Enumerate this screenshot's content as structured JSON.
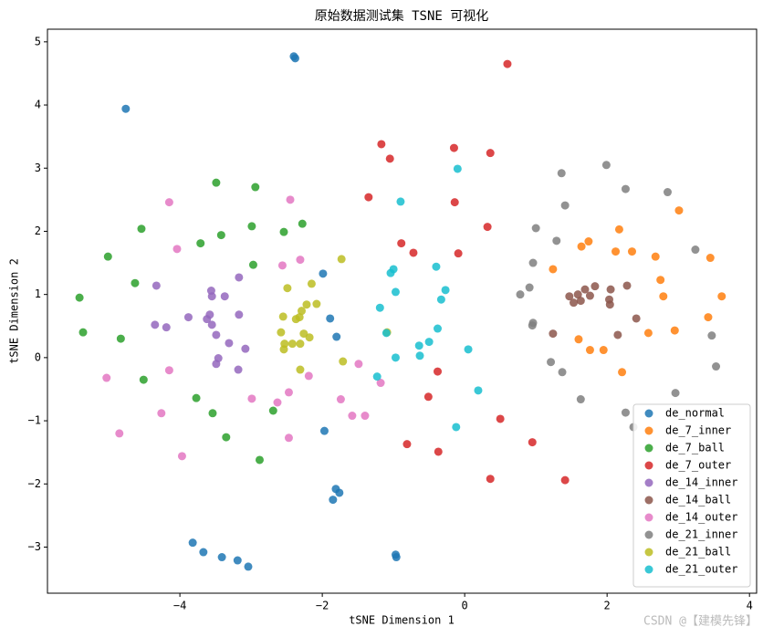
{
  "chart_data": {
    "type": "scatter",
    "title": "原始数据测试集 TSNE 可视化",
    "x_label": "tSNE Dimension 1",
    "y_label": "tSNE Dimension 2",
    "xlim": [
      -5.86,
      4.1
    ],
    "ylim": [
      -3.73,
      5.2
    ],
    "xticks": [
      {
        "value": -4,
        "label": "−4"
      },
      {
        "value": -2,
        "label": "−2"
      },
      0,
      2,
      4
    ],
    "yticks": [
      {
        "value": -3,
        "label": "−3"
      },
      {
        "value": -2,
        "label": "−2"
      },
      {
        "value": -1,
        "label": "−1"
      },
      0,
      1,
      2,
      3,
      4,
      5
    ],
    "legend": "lower right",
    "watermark": "CSDN @【建模先锋】",
    "series": [
      {
        "name": "de_normal",
        "color": "#1f77b4",
        "x": [
          -4.76,
          -2.4,
          -2.38,
          -1.99,
          -1.89,
          -1.8,
          -1.97,
          -1.81,
          -1.76,
          -1.85,
          -3.82,
          -3.67,
          -3.41,
          -3.19,
          -3.04,
          -0.97,
          -0.96
        ],
        "values": [
          3.94,
          4.77,
          4.74,
          1.33,
          0.62,
          0.33,
          -1.16,
          -2.08,
          -2.14,
          -2.25,
          -2.93,
          -3.08,
          -3.16,
          -3.21,
          -3.31,
          -3.12,
          -3.16
        ]
      },
      {
        "name": "de_7_inner",
        "color": "#ff7f0e",
        "x": [
          3.01,
          2.17,
          1.64,
          1.74,
          2.12,
          2.35,
          2.68,
          3.45,
          1.24,
          2.75,
          3.61,
          2.79,
          3.42,
          2.58,
          2.95,
          1.6,
          1.76,
          1.95,
          2.21
        ],
        "values": [
          2.33,
          2.03,
          1.76,
          1.84,
          1.68,
          1.68,
          1.6,
          1.58,
          1.4,
          1.23,
          0.97,
          0.97,
          0.64,
          0.39,
          0.43,
          0.29,
          0.12,
          0.12,
          -0.23
        ]
      },
      {
        "name": "de_7_ball",
        "color": "#2ca02c",
        "x": [
          -3.49,
          -2.94,
          -4.54,
          -2.99,
          -2.28,
          -2.54,
          -3.42,
          -3.71,
          -5.01,
          -4.63,
          -2.97,
          -5.41,
          -5.36,
          -4.83,
          -4.51,
          -3.77,
          -3.54,
          -3.35,
          -2.69,
          -2.88
        ],
        "values": [
          2.77,
          2.7,
          2.04,
          2.08,
          2.12,
          1.99,
          1.94,
          1.81,
          1.6,
          1.18,
          1.47,
          0.95,
          0.4,
          0.3,
          -0.35,
          -0.64,
          -0.88,
          -1.26,
          -0.84,
          -1.62
        ]
      },
      {
        "name": "de_7_outer",
        "color": "#d62728",
        "x": [
          0.6,
          -1.17,
          -1.05,
          -0.15,
          0.36,
          -1.35,
          -0.14,
          0.32,
          -0.89,
          -0.72,
          -0.09,
          -0.38,
          -0.51,
          0.5,
          -0.81,
          -0.37,
          0.95,
          0.36,
          1.41
        ],
        "values": [
          4.65,
          3.38,
          3.15,
          3.32,
          3.24,
          2.54,
          2.46,
          2.07,
          1.81,
          1.66,
          1.65,
          -0.22,
          -0.62,
          -0.97,
          -1.37,
          -1.49,
          -1.34,
          -1.92,
          -1.94
        ]
      },
      {
        "name": "de_14_inner",
        "color": "#9467bd",
        "x": [
          -4.33,
          -3.17,
          -3.56,
          -3.37,
          -3.55,
          -3.88,
          -3.62,
          -3.58,
          -3.17,
          -4.35,
          -4.19,
          -3.55,
          -3.49,
          -3.31,
          -3.08,
          -3.46,
          -3.49,
          -3.18
        ],
        "values": [
          1.14,
          1.27,
          1.06,
          0.97,
          0.97,
          0.64,
          0.61,
          0.68,
          0.68,
          0.52,
          0.48,
          0.52,
          0.36,
          0.23,
          0.14,
          -0.01,
          -0.1,
          -0.19
        ]
      },
      {
        "name": "de_14_ball",
        "color": "#8c564b",
        "x": [
          1.83,
          2.05,
          1.69,
          2.28,
          1.47,
          1.59,
          1.53,
          1.63,
          2.03,
          2.04,
          1.76,
          2.41,
          1.24,
          2.15
        ],
        "values": [
          1.13,
          1.08,
          1.08,
          1.14,
          0.97,
          1.0,
          0.87,
          0.9,
          0.92,
          0.84,
          0.98,
          0.62,
          0.38,
          0.36
        ]
      },
      {
        "name": "de_14_outer",
        "color": "#e377c2",
        "x": [
          -4.15,
          -2.45,
          -4.04,
          -2.31,
          -2.56,
          -5.03,
          -4.15,
          -4.26,
          -4.85,
          -3.97,
          -2.99,
          -2.63,
          -2.47,
          -2.19,
          -1.74,
          -1.58,
          -1.4,
          -1.49,
          -1.18,
          -2.47
        ],
        "values": [
          2.46,
          2.5,
          1.72,
          1.55,
          1.46,
          -0.32,
          -0.2,
          -0.88,
          -1.2,
          -1.56,
          -0.65,
          -0.71,
          -0.55,
          -0.29,
          -0.66,
          -0.92,
          -0.92,
          -0.1,
          -0.4,
          -1.27
        ]
      },
      {
        "name": "de_21_inner",
        "color": "#7f7f7f",
        "x": [
          1.99,
          1.36,
          2.26,
          2.85,
          1.41,
          1.0,
          1.29,
          3.24,
          0.96,
          0.91,
          0.78,
          0.96,
          0.95,
          3.47,
          1.21,
          1.37,
          1.63,
          3.53,
          2.96,
          2.26,
          2.37
        ],
        "values": [
          3.05,
          2.92,
          2.67,
          2.62,
          2.41,
          2.05,
          1.85,
          1.71,
          1.5,
          1.11,
          1.0,
          0.55,
          0.51,
          0.35,
          -0.07,
          -0.23,
          -0.66,
          -0.14,
          -0.56,
          -0.87,
          -1.1
        ]
      },
      {
        "name": "de_21_ball",
        "color": "#bcbd22",
        "x": [
          -1.73,
          -2.15,
          -2.49,
          -2.22,
          -2.08,
          -2.29,
          -2.32,
          -2.55,
          -2.37,
          -2.26,
          -2.58,
          -2.18,
          -2.53,
          -2.42,
          -2.31,
          -2.54,
          -1.71,
          -2.31,
          -1.09
        ],
        "values": [
          1.56,
          1.17,
          1.1,
          0.84,
          0.85,
          0.74,
          0.64,
          0.65,
          0.61,
          0.38,
          0.4,
          0.32,
          0.22,
          0.22,
          0.22,
          0.13,
          -0.06,
          -0.19,
          0.4
        ]
      },
      {
        "name": "de_21_outer",
        "color": "#17becf",
        "x": [
          -0.1,
          -0.9,
          -1.0,
          -1.04,
          -0.4,
          -0.27,
          -0.97,
          -0.33,
          -1.19,
          -1.1,
          -0.38,
          -0.5,
          -0.64,
          -0.63,
          -0.97,
          0.05,
          -1.23,
          0.19,
          -0.12
        ],
        "values": [
          2.99,
          2.47,
          1.4,
          1.34,
          1.44,
          1.07,
          1.04,
          0.92,
          0.79,
          0.39,
          0.46,
          0.25,
          0.19,
          0.03,
          0.0,
          0.13,
          -0.3,
          -0.52,
          -1.1
        ]
      }
    ]
  }
}
